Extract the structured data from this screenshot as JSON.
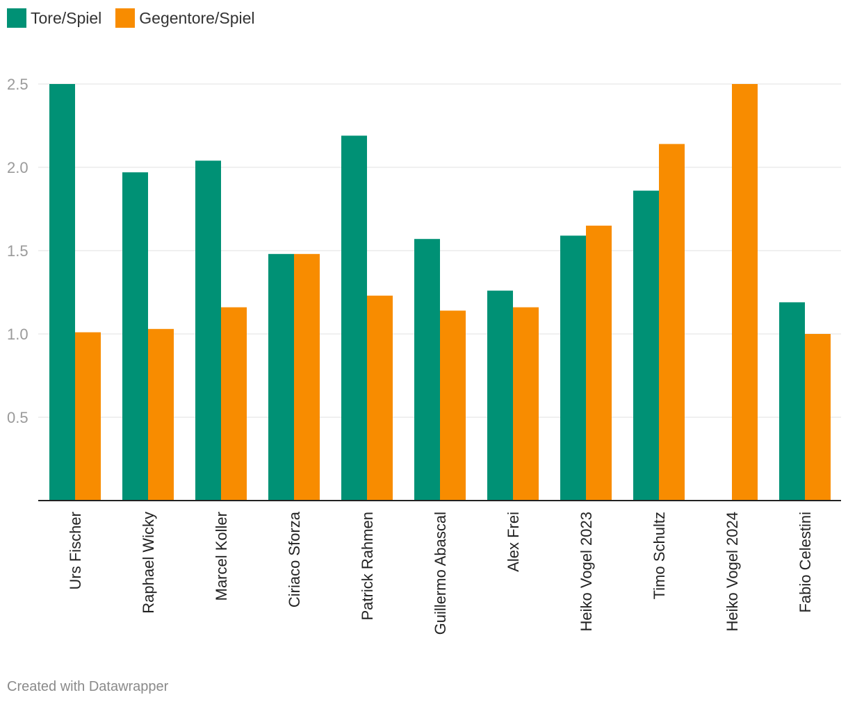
{
  "colors": {
    "goals": "#009175",
    "conceded": "#f88c00"
  },
  "legend": [
    {
      "label": "Tore/Spiel",
      "color": "#009175"
    },
    {
      "label": "Gegentore/Spiel",
      "color": "#f88c00"
    }
  ],
  "footer": {
    "text": "Created with Datawrapper"
  },
  "chart_data": {
    "type": "bar",
    "categories": [
      "Urs Fischer",
      "Raphael Wicky",
      "Marcel Koller",
      "Ciriaco Sforza",
      "Patrick Rahmen",
      "Guillermo Abascal",
      "Alex Frei",
      "Heiko Vogel 2023",
      "Timo Schultz",
      "Heiko Vogel 2024",
      "Fabio Celestini"
    ],
    "series": [
      {
        "name": "Tore/Spiel",
        "values": [
          2.5,
          1.97,
          2.04,
          1.48,
          2.19,
          1.57,
          1.26,
          1.59,
          1.86,
          0,
          1.19
        ]
      },
      {
        "name": "Gegentore/Spiel",
        "values": [
          1.01,
          1.03,
          1.16,
          1.48,
          1.23,
          1.14,
          1.16,
          1.65,
          2.14,
          2.5,
          1.0
        ]
      }
    ],
    "yticks": [
      "0.5",
      "1.0",
      "1.5",
      "2.0",
      "2.5"
    ],
    "ylim": [
      0,
      2.5
    ],
    "grid": true,
    "legend_position": "top-left"
  }
}
